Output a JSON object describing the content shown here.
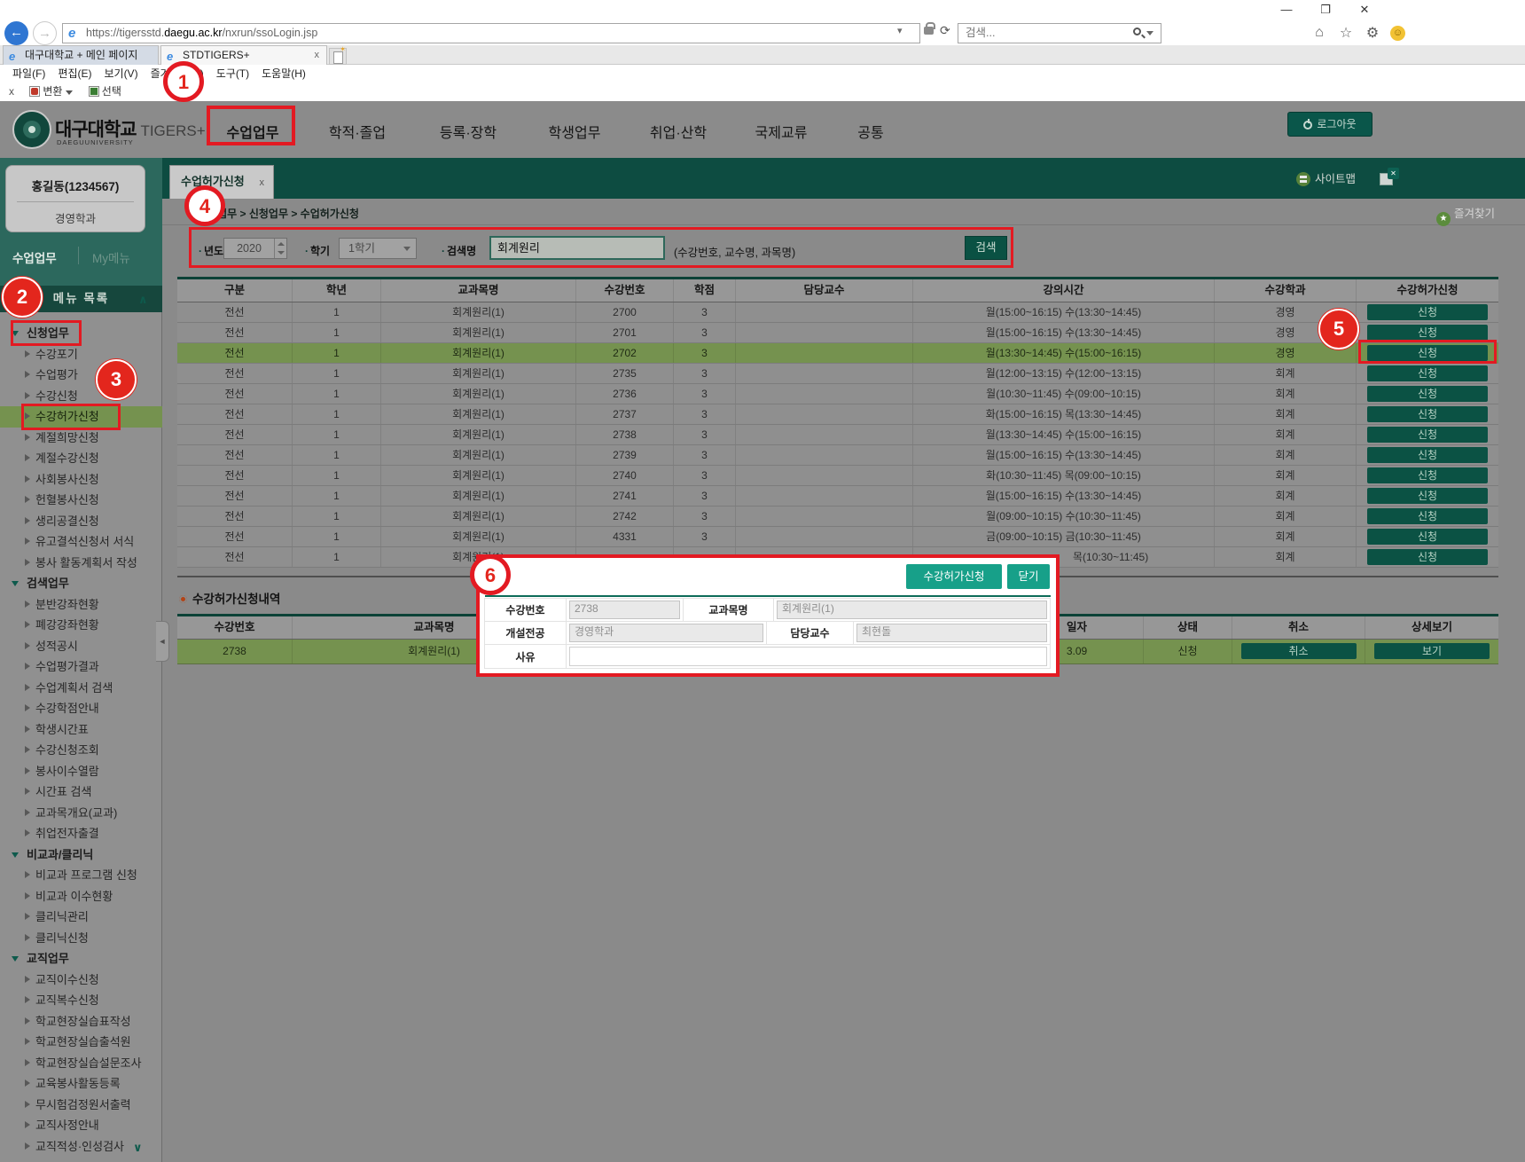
{
  "browser": {
    "window_controls": {
      "minimize": "—",
      "maximize": "❐",
      "close": "✕"
    },
    "url": {
      "prefix": "https://tigersstd.",
      "domain": "daegu.ac.kr",
      "path": "/nxrun/ssoLogin.jsp"
    },
    "search_placeholder": "검색...",
    "tabs": [
      {
        "label": "대구대학교 + 메인 페이지"
      },
      {
        "label": "STDTIGERS+",
        "close": "x"
      }
    ],
    "menu": [
      "파일(F)",
      "편집(E)",
      "보기(V)",
      "즐겨찾기(A)",
      "도구(T)",
      "도움말(H)"
    ],
    "command_bar": {
      "close": "x",
      "convert": "변환",
      "select": "선택"
    }
  },
  "header": {
    "university": "대구대학교",
    "brand": "TIGERS+",
    "university_en": "DAEGUUNIVERSITY",
    "nav": [
      "수업업무",
      "학적·졸업",
      "등록·장학",
      "학생업무",
      "취업·산학",
      "국제교류",
      "공통"
    ],
    "logout": "로그아웃"
  },
  "sidebar": {
    "user_name": "홍길동(1234567)",
    "user_dept": "경영학과",
    "tab_work": "수업업무",
    "tab_my": "My메뉴",
    "menu_title": "메뉴 목록",
    "items": [
      {
        "label": "신청업무",
        "type": "section",
        "boxed": true
      },
      {
        "label": "수강포기"
      },
      {
        "label": "수업평가"
      },
      {
        "label": "수강신청"
      },
      {
        "label": "수강허가신청",
        "selected": true,
        "boxed": true
      },
      {
        "label": "계절희망신청"
      },
      {
        "label": "계절수강신청"
      },
      {
        "label": "사회봉사신청"
      },
      {
        "label": "헌혈봉사신청"
      },
      {
        "label": "생리공결신청"
      },
      {
        "label": "유고결석신청서 서식"
      },
      {
        "label": "봉사 활동계획서 작성"
      },
      {
        "label": "검색업무",
        "type": "section"
      },
      {
        "label": "분반강좌현황"
      },
      {
        "label": "폐강강좌현황"
      },
      {
        "label": "성적공시"
      },
      {
        "label": "수업평가결과"
      },
      {
        "label": "수업계획서 검색"
      },
      {
        "label": "수강학점안내"
      },
      {
        "label": "학생시간표"
      },
      {
        "label": "수강신청조회"
      },
      {
        "label": "봉사이수열람"
      },
      {
        "label": "시간표 검색"
      },
      {
        "label": "교과목개요(교과)"
      },
      {
        "label": "취업전자출결"
      },
      {
        "label": "비교과/클리닉",
        "type": "section"
      },
      {
        "label": "비교과 프로그램 신청"
      },
      {
        "label": "비교과 이수현황"
      },
      {
        "label": "클리닉관리"
      },
      {
        "label": "클리닉신청"
      },
      {
        "label": "교직업무",
        "type": "section"
      },
      {
        "label": "교직이수신청"
      },
      {
        "label": "교직복수신청"
      },
      {
        "label": "학교현장실습표작성"
      },
      {
        "label": "학교현장실습출석원"
      },
      {
        "label": "학교현장실습설문조사"
      },
      {
        "label": "교육봉사활동등록"
      },
      {
        "label": "무시험검정원서출력"
      },
      {
        "label": "교직사정안내"
      },
      {
        "label": "교직적성·인성검사"
      }
    ]
  },
  "content": {
    "tab": "수업허가신청",
    "tab_close": "x",
    "breadcrumb": "수업업무 > 신청업무 > 수업허가신청",
    "sitemap": "사이트맵",
    "favorites": "즐겨찾기",
    "search": {
      "year_label": "년도",
      "year": "2020",
      "term_label": "학기",
      "term": "1학기",
      "keyword_label": "검색명",
      "keyword": "회계원리",
      "hint": "(수강번호, 교수명, 과목명)",
      "button": "검색"
    },
    "course_table": {
      "headers": [
        "구분",
        "학년",
        "교과목명",
        "수강번호",
        "학점",
        "담당교수",
        "강의시간",
        "수강학과",
        "수강허가신청"
      ],
      "apply_label": "신청",
      "rows": [
        {
          "type": "전선",
          "grade": "1",
          "name": "회계원리(1)",
          "no": "2700",
          "credit": "3",
          "prof": "",
          "time": "월(15:00~16:15) 수(13:30~14:45)",
          "dept": "경영"
        },
        {
          "type": "전선",
          "grade": "1",
          "name": "회계원리(1)",
          "no": "2701",
          "credit": "3",
          "prof": "",
          "time": "월(15:00~16:15) 수(13:30~14:45)",
          "dept": "경영"
        },
        {
          "type": "전선",
          "grade": "1",
          "name": "회계원리(1)",
          "no": "2702",
          "credit": "3",
          "prof": "",
          "time": "월(13:30~14:45) 수(15:00~16:15)",
          "dept": "경영",
          "highlight": true
        },
        {
          "type": "전선",
          "grade": "1",
          "name": "회계원리(1)",
          "no": "2735",
          "credit": "3",
          "prof": "",
          "time": "월(12:00~13:15) 수(12:00~13:15)",
          "dept": "회계"
        },
        {
          "type": "전선",
          "grade": "1",
          "name": "회계원리(1)",
          "no": "2736",
          "credit": "3",
          "prof": "",
          "time": "월(10:30~11:45) 수(09:00~10:15)",
          "dept": "회계"
        },
        {
          "type": "전선",
          "grade": "1",
          "name": "회계원리(1)",
          "no": "2737",
          "credit": "3",
          "prof": "",
          "time": "화(15:00~16:15) 목(13:30~14:45)",
          "dept": "회계"
        },
        {
          "type": "전선",
          "grade": "1",
          "name": "회계원리(1)",
          "no": "2738",
          "credit": "3",
          "prof": "",
          "time": "월(13:30~14:45) 수(15:00~16:15)",
          "dept": "회계"
        },
        {
          "type": "전선",
          "grade": "1",
          "name": "회계원리(1)",
          "no": "2739",
          "credit": "3",
          "prof": "",
          "time": "월(15:00~16:15) 수(13:30~14:45)",
          "dept": "회계"
        },
        {
          "type": "전선",
          "grade": "1",
          "name": "회계원리(1)",
          "no": "2740",
          "credit": "3",
          "prof": "",
          "time": "화(10:30~11:45) 목(09:00~10:15)",
          "dept": "회계"
        },
        {
          "type": "전선",
          "grade": "1",
          "name": "회계원리(1)",
          "no": "2741",
          "credit": "3",
          "prof": "",
          "time": "월(15:00~16:15) 수(13:30~14:45)",
          "dept": "회계"
        },
        {
          "type": "전선",
          "grade": "1",
          "name": "회계원리(1)",
          "no": "2742",
          "credit": "3",
          "prof": "",
          "time": "월(09:00~10:15) 수(10:30~11:45)",
          "dept": "회계"
        },
        {
          "type": "전선",
          "grade": "1",
          "name": "회계원리(1)",
          "no": "4331",
          "credit": "3",
          "prof": "",
          "time": "금(09:00~10:15) 금(10:30~11:45)",
          "dept": "회계"
        },
        {
          "type": "전선",
          "grade": "1",
          "name": "회계원리(1)",
          "no": "",
          "credit": "",
          "prof": "",
          "time": "목(10:30~11:45)",
          "dept": "회계",
          "partial": true
        }
      ]
    },
    "history": {
      "title": "수강허가신청내역",
      "headers": [
        "수강번호",
        "교과목명",
        "",
        "일자",
        "상태",
        "취소",
        "상세보기"
      ],
      "row": {
        "course_no": "2738",
        "course_name": "회계원리(1)",
        "hidden": "",
        "date": "3.09",
        "status": "신청",
        "cancel_label": "취소",
        "detail_label": "보기"
      }
    }
  },
  "modal": {
    "apply_button": "수강허가신청",
    "close_button": "닫기",
    "fields": {
      "course_no_label": "수강번호",
      "course_no": "2738",
      "course_name_label": "교과목명",
      "course_name": "회계원리(1)",
      "major_label": "개설전공",
      "major": "경영학과",
      "professor_label": "담당교수",
      "professor": "최현돌",
      "reason_label": "사유",
      "reason": ""
    }
  },
  "annotations": {
    "steps": [
      "1",
      "2",
      "3",
      "4",
      "5",
      "6"
    ]
  }
}
